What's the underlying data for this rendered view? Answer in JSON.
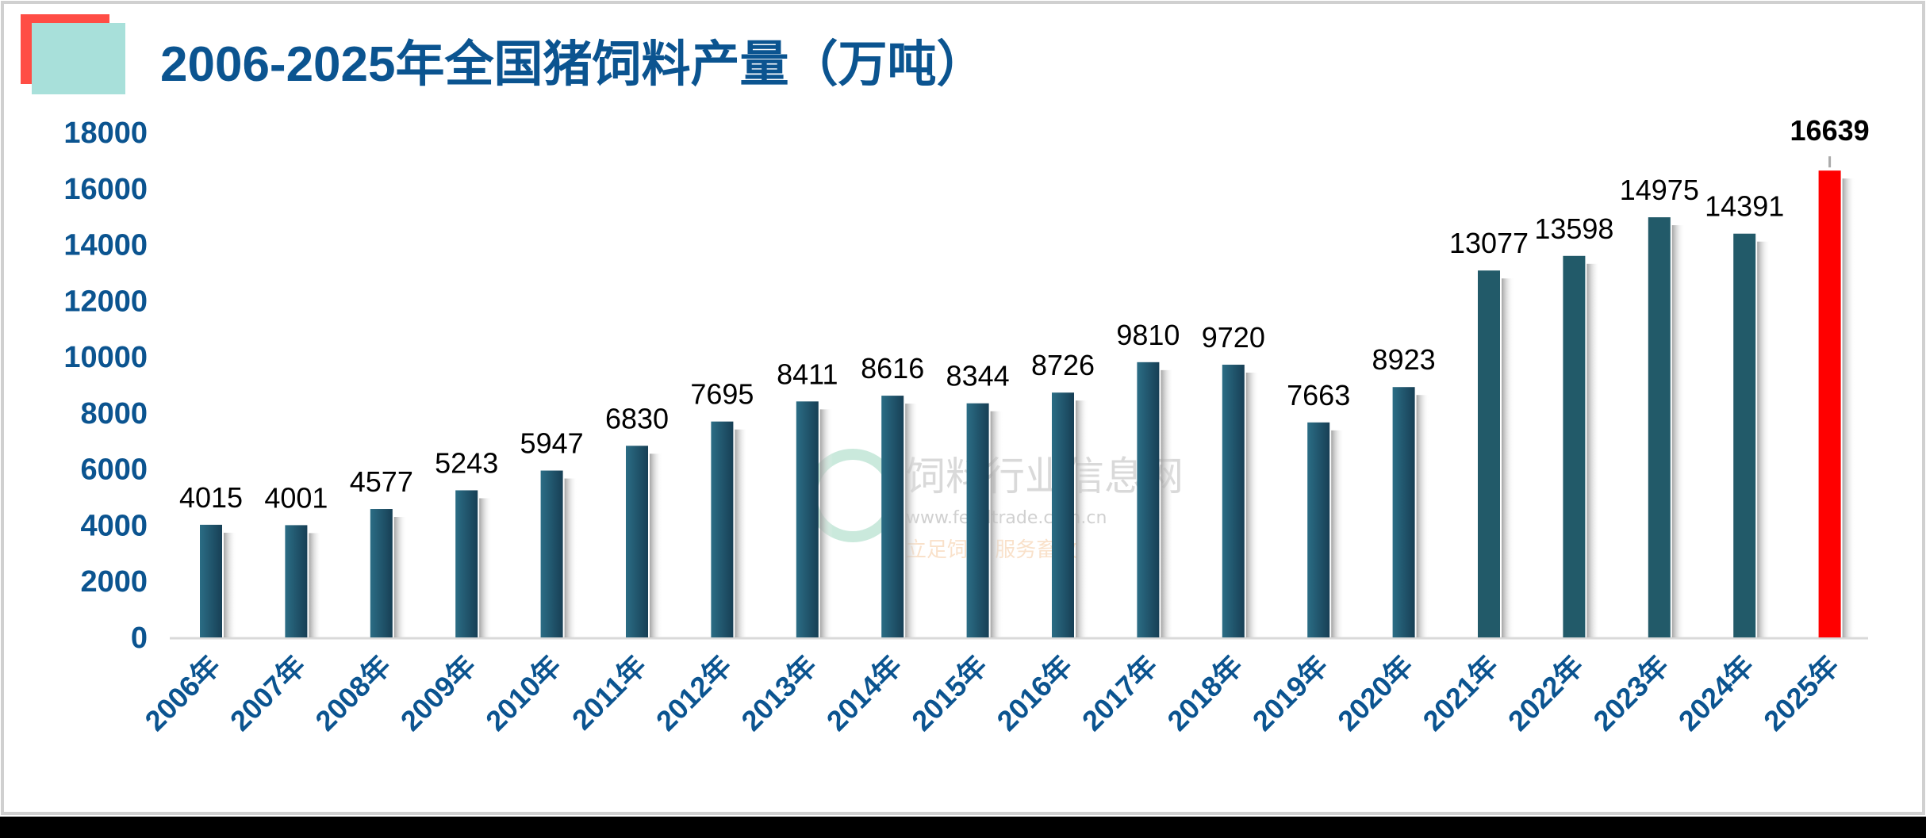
{
  "chart_data": {
    "type": "bar",
    "title": "2006-2025年全国猪饲料产量（万吨）",
    "xlabel": "",
    "ylabel": "",
    "ylim": [
      0,
      18000
    ],
    "yticks": [
      0,
      2000,
      4000,
      6000,
      8000,
      10000,
      12000,
      14000,
      16000,
      18000
    ],
    "grid": false,
    "legend": "none",
    "categories": [
      "2006年",
      "2007年",
      "2008年",
      "2009年",
      "2010年",
      "2011年",
      "2012年",
      "2013年",
      "2014年",
      "2015年",
      "2016年",
      "2017年",
      "2018年",
      "2019年",
      "2020年",
      "2021年",
      "2022年",
      "2023年",
      "2024年",
      "2025年"
    ],
    "values": [
      4015,
      4001,
      4577,
      5243,
      5947,
      6830,
      7695,
      8411,
      8616,
      8344,
      8726,
      9810,
      9720,
      7663,
      8923,
      13077,
      13598,
      14975,
      14391,
      16639
    ],
    "highlight_index": 19,
    "colors": {
      "bar": "#1f5a6e",
      "highlight": "#ff0000",
      "axis_text": "#0b5490"
    }
  },
  "watermark": {
    "name": "饲料行业信息网",
    "url": "www.feedtrade.com.cn",
    "slogan": "立足饲料  服务畜牧"
  }
}
